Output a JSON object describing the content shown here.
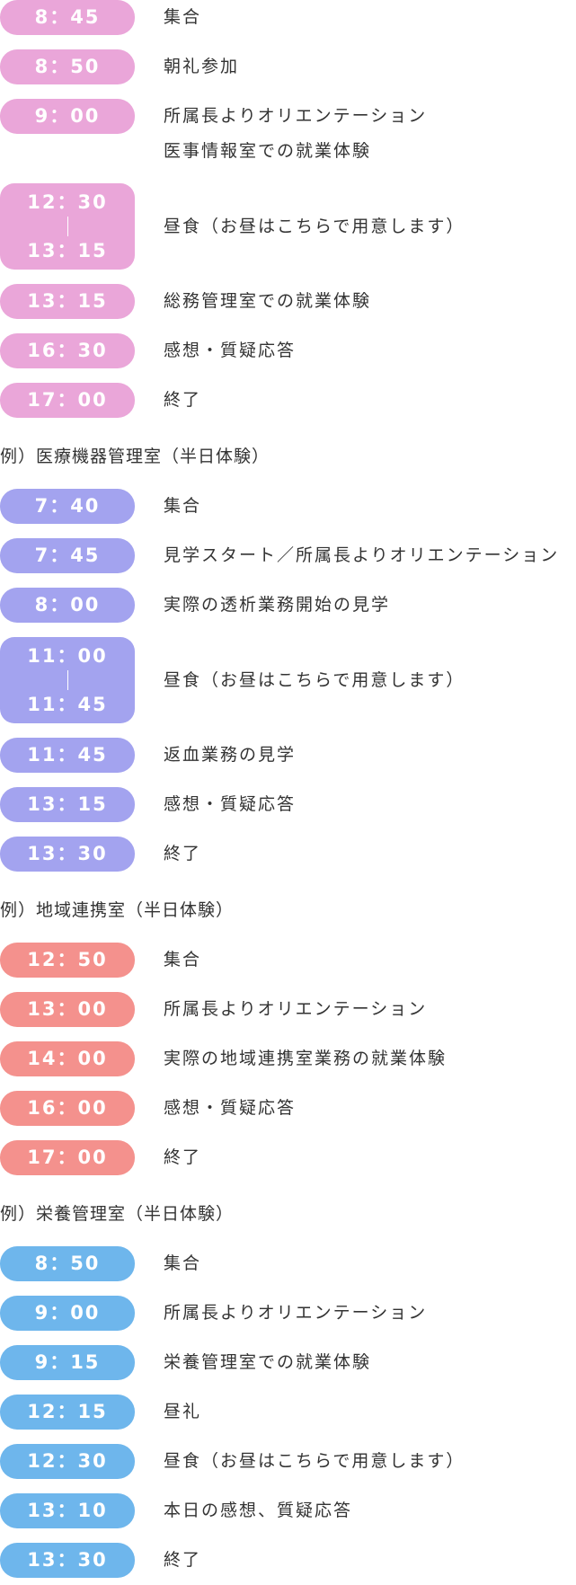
{
  "sections": [
    {
      "heading": null,
      "color": "#eaa6d9",
      "items": [
        {
          "times": [
            "8：45"
          ],
          "lines": [
            "集合"
          ]
        },
        {
          "times": [
            "8：50"
          ],
          "lines": [
            "朝礼参加"
          ]
        },
        {
          "times": [
            "9：00"
          ],
          "lines": [
            "所属長よりオリエンテーション",
            "医事情報室での就業体験"
          ]
        },
        {
          "times": [
            "12：30",
            "13：15"
          ],
          "lines": [
            "昼食（お昼はこちらで用意します）"
          ]
        },
        {
          "times": [
            "13：15"
          ],
          "lines": [
            "総務管理室での就業体験"
          ]
        },
        {
          "times": [
            "16：30"
          ],
          "lines": [
            "感想・質疑応答"
          ]
        },
        {
          "times": [
            "17：00"
          ],
          "lines": [
            "終了"
          ]
        }
      ]
    },
    {
      "heading": "例）医療機器管理室（半日体験）",
      "color": "#a3a3ef",
      "items": [
        {
          "times": [
            "7：40"
          ],
          "lines": [
            "集合"
          ]
        },
        {
          "times": [
            "7：45"
          ],
          "lines": [
            "見学スタート／所属長よりオリエンテーション"
          ]
        },
        {
          "times": [
            "8：00"
          ],
          "lines": [
            "実際の透析業務開始の見学"
          ]
        },
        {
          "times": [
            "11：00",
            "11：45"
          ],
          "lines": [
            "昼食（お昼はこちらで用意します）"
          ]
        },
        {
          "times": [
            "11：45"
          ],
          "lines": [
            "返血業務の見学"
          ]
        },
        {
          "times": [
            "13：15"
          ],
          "lines": [
            "感想・質疑応答"
          ]
        },
        {
          "times": [
            "13：30"
          ],
          "lines": [
            "終了"
          ]
        }
      ]
    },
    {
      "heading": "例）地域連携室（半日体験）",
      "color": "#f4918d",
      "items": [
        {
          "times": [
            "12：50"
          ],
          "lines": [
            "集合"
          ]
        },
        {
          "times": [
            "13：00"
          ],
          "lines": [
            "所属長よりオリエンテーション"
          ]
        },
        {
          "times": [
            "14：00"
          ],
          "lines": [
            "実際の地域連携室業務の就業体験"
          ]
        },
        {
          "times": [
            "16：00"
          ],
          "lines": [
            "感想・質疑応答"
          ]
        },
        {
          "times": [
            "17：00"
          ],
          "lines": [
            "終了"
          ]
        }
      ]
    },
    {
      "heading": "例）栄養管理室（半日体験）",
      "color": "#6eb6ec",
      "items": [
        {
          "times": [
            "8：50"
          ],
          "lines": [
            "集合"
          ]
        },
        {
          "times": [
            "9：00"
          ],
          "lines": [
            "所属長よりオリエンテーション"
          ]
        },
        {
          "times": [
            "9：15"
          ],
          "lines": [
            "栄養管理室での就業体験"
          ]
        },
        {
          "times": [
            "12：15"
          ],
          "lines": [
            "昼礼"
          ]
        },
        {
          "times": [
            "12：30"
          ],
          "lines": [
            "昼食（お昼はこちらで用意します）"
          ]
        },
        {
          "times": [
            "13：10"
          ],
          "lines": [
            "本日の感想、質疑応答"
          ]
        },
        {
          "times": [
            "13：30"
          ],
          "lines": [
            "終了"
          ]
        }
      ]
    }
  ]
}
